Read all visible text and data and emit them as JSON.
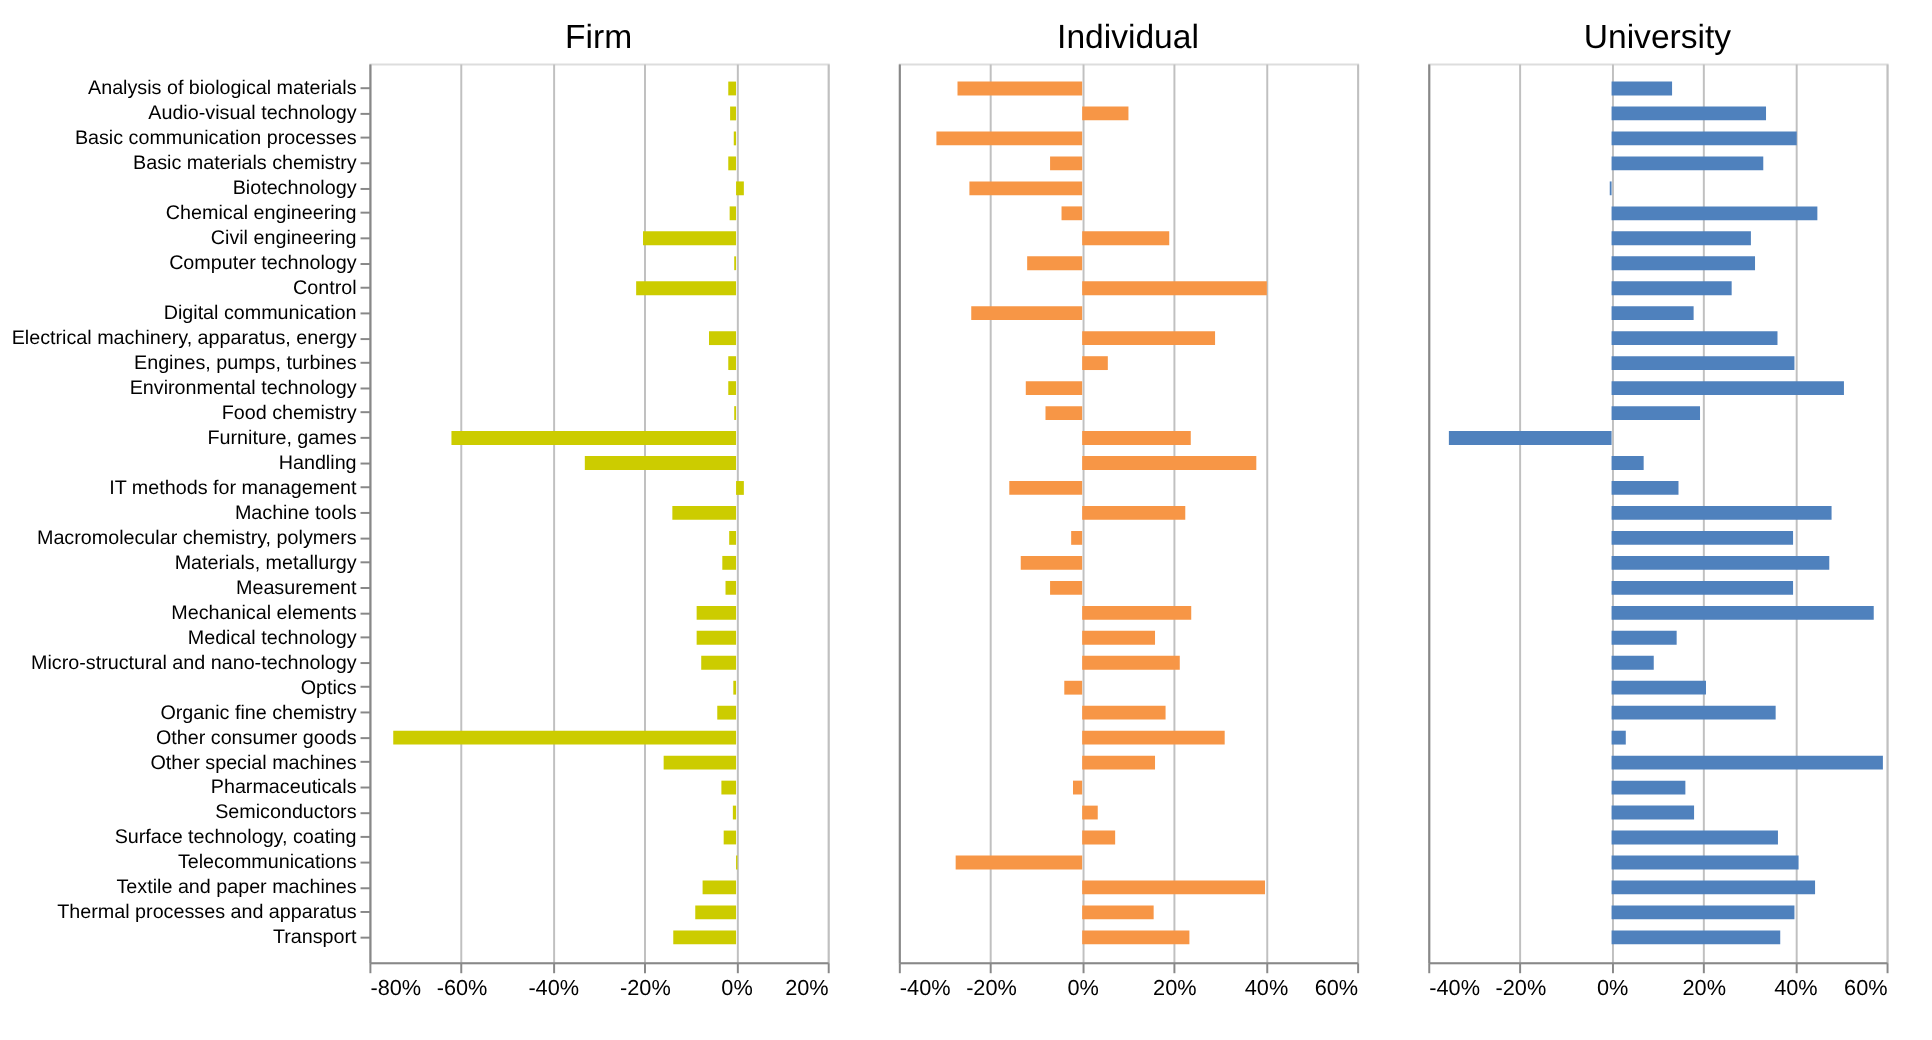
{
  "chart_data": [
    {
      "type": "bar",
      "orientation": "horizontal",
      "title": "Firm",
      "categories": [
        "Analysis of biological materials",
        "Audio-visual technology",
        "Basic communication processes",
        "Basic materials chemistry",
        "Biotechnology",
        "Chemical engineering",
        "Civil engineering",
        "Computer technology",
        "Control",
        "Digital communication",
        "Electrical machinery, apparatus, energy",
        "Engines, pumps, turbines",
        "Environmental technology",
        "Food chemistry",
        "Furniture, games",
        "Handling",
        "IT methods for management",
        "Machine tools",
        "Macromolecular chemistry, polymers",
        "Materials, metallurgy",
        "Measurement",
        "Mechanical elements",
        "Medical technology",
        "Micro-structural and nano-technology",
        "Optics",
        "Organic fine chemistry",
        "Other consumer goods",
        "Other special machines",
        "Pharmaceuticals",
        "Semiconductors",
        "Surface technology, coating",
        "Telecommunications",
        "Textile and paper machines",
        "Thermal processes and apparatus",
        "Transport"
      ],
      "series": [
        {
          "color": "#cccc00",
          "values": [
            -1.7,
            -1.3,
            -0.5,
            -1.7,
            1.7,
            -1.4,
            -20.3,
            -0.4,
            -21.8,
            null,
            -5.9,
            -1.7,
            -1.7,
            -0.4,
            -62.1,
            -33,
            1.7,
            -13.9,
            -1.5,
            -3,
            -2.3,
            -8.6,
            -8.6,
            -7.6,
            -0.6,
            -4.1,
            -74.8,
            -15.8,
            -3.2,
            -0.7,
            -2.7,
            0.3,
            -7.3,
            -8.9,
            -13.7
          ]
        }
      ],
      "xlim": [
        -80,
        20
      ],
      "xticks": [
        {
          "value": -80,
          "label": "-80%"
        },
        {
          "value": -60,
          "label": "-60%"
        },
        {
          "value": -40,
          "label": "-40%"
        },
        {
          "value": -20,
          "label": "-20%"
        },
        {
          "value": 0,
          "label": "0%"
        },
        {
          "value": 20,
          "label": "20%"
        }
      ],
      "grid": "x"
    },
    {
      "type": "bar",
      "orientation": "horizontal",
      "title": "Individual",
      "categories": [
        null,
        null,
        null,
        null,
        null,
        null,
        null,
        null,
        null,
        null,
        null,
        null,
        null,
        null,
        null,
        null,
        null,
        null,
        null,
        null,
        null,
        null,
        null,
        null,
        null,
        null,
        null,
        null,
        null,
        null,
        null,
        null,
        null,
        null,
        null
      ],
      "series": [
        {
          "color": "#f79646",
          "values": [
            -27.2,
            10.1,
            -31.8,
            -7,
            -24.6,
            -4.5,
            19,
            -12,
            40.3,
            -24.2,
            29,
            5.6,
            -12.3,
            -8,
            23.7,
            38,
            -15.9,
            22.5,
            -2.4,
            -13.4,
            -7,
            23.8,
            15.9,
            21.3,
            -3.9,
            18.2,
            31.1,
            15.9,
            -2,
            3.4,
            7.2,
            -27.6,
            39.9,
            15.6,
            23.4
          ]
        }
      ],
      "xlim": [
        -40,
        60
      ],
      "xticks": [
        {
          "value": -40,
          "label": "-40%"
        },
        {
          "value": -20,
          "label": "-20%"
        },
        {
          "value": 0,
          "label": "0%"
        },
        {
          "value": 20,
          "label": "20%"
        },
        {
          "value": 40,
          "label": "40%"
        },
        {
          "value": 60,
          "label": "60%"
        }
      ],
      "grid": "x",
      "tick_labels": "x"
    },
    {
      "type": "bar",
      "orientation": "horizontal",
      "title": "University",
      "categories": [
        null,
        null,
        null,
        null,
        null,
        null,
        null,
        null,
        null,
        null,
        null,
        null,
        null,
        null,
        null,
        null,
        null,
        null,
        null,
        null,
        null,
        null,
        null,
        null,
        null,
        null,
        null,
        null,
        null,
        null,
        null,
        null,
        null,
        null,
        null
      ],
      "series": [
        {
          "color": "#4f81bd",
          "values": [
            13.2,
            33.7,
            40.4,
            33.1,
            -0.4,
            44.9,
            30.4,
            31.3,
            26.2,
            17.9,
            36.2,
            39.9,
            50.7,
            19.3,
            -35.5,
            7,
            14.6,
            48,
            39.6,
            47.5,
            39.6,
            57.2,
            14.2,
            9.2,
            20.6,
            35.8,
            3.1,
            59.2,
            16.1,
            18,
            36.3,
            40.8,
            44.4,
            39.9,
            36.8
          ]
        }
      ],
      "xlim": [
        -40,
        60
      ],
      "xticks": [
        {
          "value": -40,
          "label": "-40%"
        },
        {
          "value": -20,
          "label": "-20%"
        },
        {
          "value": 0,
          "label": "0%"
        },
        {
          "value": 20,
          "label": "20%"
        },
        {
          "value": 40,
          "label": "40%"
        },
        {
          "value": 60,
          "label": "60%"
        }
      ],
      "grid": "x",
      "tick_labels": "x"
    }
  ]
}
